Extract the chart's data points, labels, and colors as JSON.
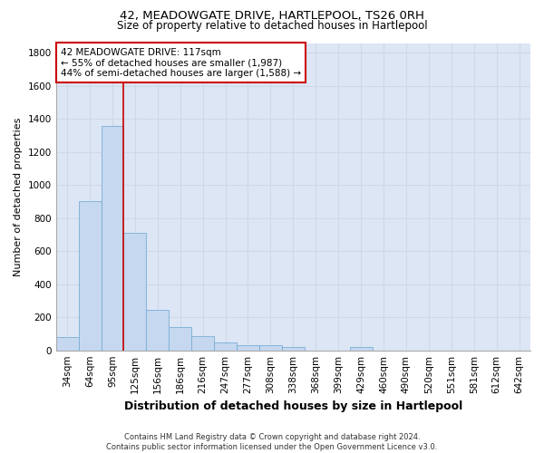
{
  "title": "42, MEADOWGATE DRIVE, HARTLEPOOL, TS26 0RH",
  "subtitle": "Size of property relative to detached houses in Hartlepool",
  "xlabel": "Distribution of detached houses by size in Hartlepool",
  "ylabel": "Number of detached properties",
  "footer_line1": "Contains HM Land Registry data © Crown copyright and database right 2024.",
  "footer_line2": "Contains public sector information licensed under the Open Government Licence v3.0.",
  "categories": [
    "34sqm",
    "64sqm",
    "95sqm",
    "125sqm",
    "156sqm",
    "186sqm",
    "216sqm",
    "247sqm",
    "277sqm",
    "308sqm",
    "338sqm",
    "368sqm",
    "399sqm",
    "429sqm",
    "460sqm",
    "490sqm",
    "520sqm",
    "551sqm",
    "581sqm",
    "612sqm",
    "642sqm"
  ],
  "values": [
    80,
    905,
    1360,
    710,
    245,
    140,
    85,
    50,
    30,
    30,
    20,
    0,
    0,
    20,
    0,
    0,
    0,
    0,
    0,
    0,
    0
  ],
  "bar_color": "#c5d8f0",
  "bar_edge_color": "#7aadd4",
  "grid_color": "#d0d8e8",
  "bg_color": "#dce6f5",
  "annotation_line1": "42 MEADOWGATE DRIVE: 117sqm",
  "annotation_line2": "← 55% of detached houses are smaller (1,987)",
  "annotation_line3": "44% of semi-detached houses are larger (1,588) →",
  "vline_color": "#cc0000",
  "annotation_box_color": "#cc0000",
  "ylim": [
    0,
    1860
  ],
  "yticks": [
    0,
    200,
    400,
    600,
    800,
    1000,
    1200,
    1400,
    1600,
    1800
  ],
  "title_fontsize": 9.5,
  "subtitle_fontsize": 8.5,
  "ylabel_fontsize": 8,
  "xlabel_fontsize": 9,
  "tick_fontsize": 7.5,
  "annotation_fontsize": 7.5,
  "footer_fontsize": 6.0
}
